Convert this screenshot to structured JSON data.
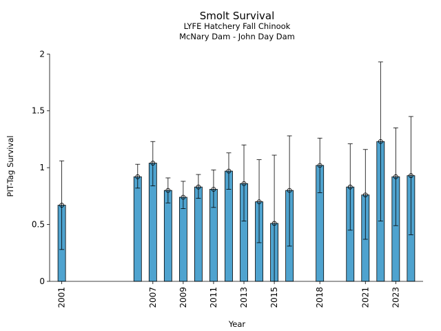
{
  "chart_data": {
    "type": "bar",
    "title": "Smolt Survival",
    "subtitle_1": "LYFE Hatchery Fall Chinook",
    "subtitle_2": "McNary Dam - John Day Dam",
    "xlabel": "Year",
    "ylabel": "PIT-Tag Survival",
    "xlim": [
      2000.2,
      2024.8
    ],
    "ylim": [
      0,
      2.02
    ],
    "x_tick_labels": [
      "2001",
      "2007",
      "2009",
      "2011",
      "2013",
      "2015",
      "2018",
      "2021",
      "2023"
    ],
    "y_tick_labels": [
      "0",
      "0.5",
      "1",
      "1.5",
      "2"
    ],
    "bar_color": "#4fa3cf",
    "edge_color": "#000000",
    "grid": false,
    "data": [
      {
        "year": 2001,
        "value": 0.67,
        "lower": 0.28,
        "upper": 1.06
      },
      {
        "year": 2006,
        "value": 0.92,
        "lower": 0.82,
        "upper": 1.03
      },
      {
        "year": 2007,
        "value": 1.04,
        "lower": 0.84,
        "upper": 1.23
      },
      {
        "year": 2008,
        "value": 0.8,
        "lower": 0.69,
        "upper": 0.91
      },
      {
        "year": 2009,
        "value": 0.74,
        "lower": 0.64,
        "upper": 0.88
      },
      {
        "year": 2010,
        "value": 0.83,
        "lower": 0.73,
        "upper": 0.94
      },
      {
        "year": 2011,
        "value": 0.81,
        "lower": 0.65,
        "upper": 0.98
      },
      {
        "year": 2012,
        "value": 0.97,
        "lower": 0.81,
        "upper": 1.13
      },
      {
        "year": 2013,
        "value": 0.86,
        "lower": 0.53,
        "upper": 1.2
      },
      {
        "year": 2014,
        "value": 0.7,
        "lower": 0.34,
        "upper": 1.07
      },
      {
        "year": 2015,
        "value": 0.51,
        "lower": 0.0,
        "upper": 1.11
      },
      {
        "year": 2016,
        "value": 0.8,
        "lower": 0.31,
        "upper": 1.28
      },
      {
        "year": 2018,
        "value": 1.02,
        "lower": 0.78,
        "upper": 1.26
      },
      {
        "year": 2020,
        "value": 0.83,
        "lower": 0.45,
        "upper": 1.21
      },
      {
        "year": 2021,
        "value": 0.76,
        "lower": 0.37,
        "upper": 1.16
      },
      {
        "year": 2022,
        "value": 1.23,
        "lower": 0.53,
        "upper": 1.93
      },
      {
        "year": 2023,
        "value": 0.92,
        "lower": 0.49,
        "upper": 1.35
      },
      {
        "year": 2024,
        "value": 0.93,
        "lower": 0.41,
        "upper": 1.45
      }
    ]
  }
}
